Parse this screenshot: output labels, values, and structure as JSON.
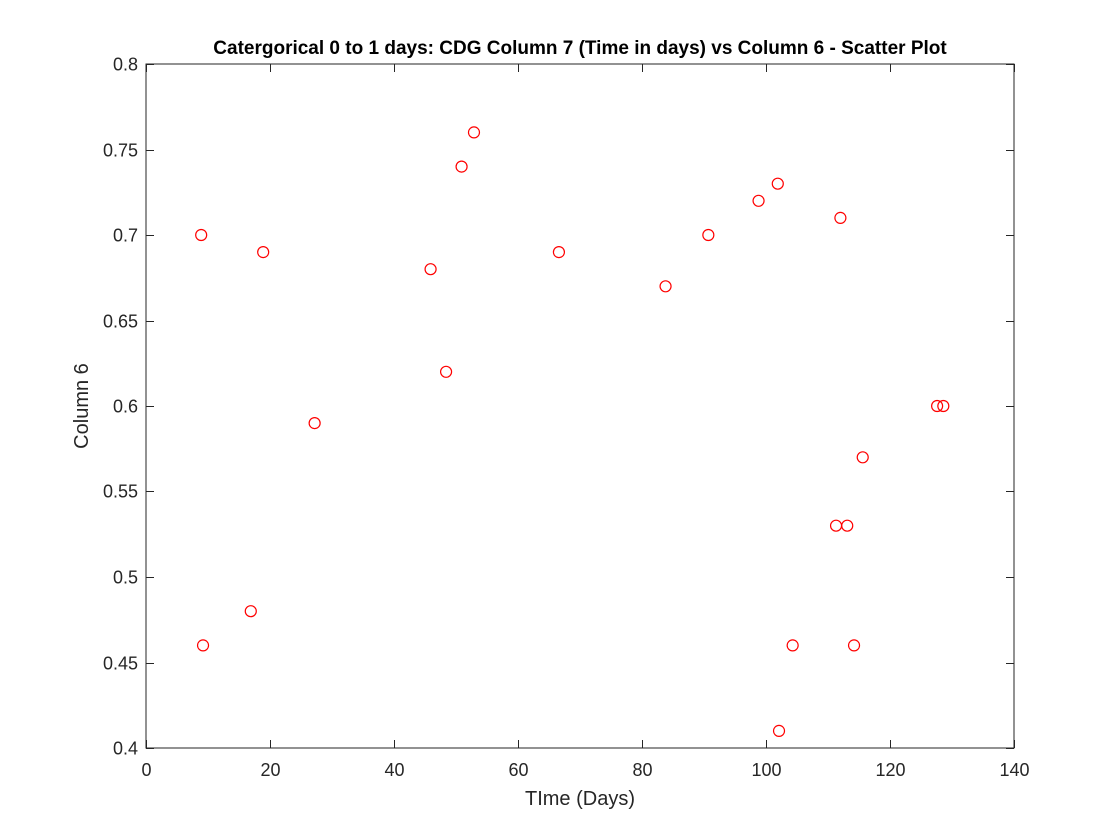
{
  "chart_data": {
    "type": "scatter",
    "title": "Catergorical 0 to 1 days: CDG Column 7 (Time in days) vs Column 6 - Scatter Plot",
    "xlabel": "TIme (Days)",
    "ylabel": "Column 6",
    "xlim": [
      0,
      140
    ],
    "ylim": [
      0.4,
      0.8
    ],
    "xticks": [
      0,
      20,
      40,
      60,
      80,
      100,
      120,
      140
    ],
    "xtick_labels": [
      "0",
      "20",
      "40",
      "60",
      "80",
      "100",
      "120",
      "140"
    ],
    "yticks": [
      0.4,
      0.45,
      0.5,
      0.55,
      0.6,
      0.65,
      0.7,
      0.75,
      0.8
    ],
    "ytick_labels": [
      "0.4",
      "0.45",
      "0.5",
      "0.55",
      "0.6",
      "0.65",
      "0.7",
      "0.75",
      "0.8"
    ],
    "grid": false,
    "marker": "circle-open",
    "marker_color": "#ff0000",
    "axis_color": "#262626",
    "points": [
      {
        "x": 8.9,
        "y": 0.7
      },
      {
        "x": 9.2,
        "y": 0.46
      },
      {
        "x": 16.9,
        "y": 0.48
      },
      {
        "x": 18.9,
        "y": 0.69
      },
      {
        "x": 27.2,
        "y": 0.59
      },
      {
        "x": 45.9,
        "y": 0.68
      },
      {
        "x": 48.4,
        "y": 0.62
      },
      {
        "x": 50.9,
        "y": 0.74
      },
      {
        "x": 52.9,
        "y": 0.76
      },
      {
        "x": 66.6,
        "y": 0.69
      },
      {
        "x": 83.8,
        "y": 0.67
      },
      {
        "x": 90.7,
        "y": 0.7
      },
      {
        "x": 98.8,
        "y": 0.72
      },
      {
        "x": 101.9,
        "y": 0.73
      },
      {
        "x": 102.1,
        "y": 0.41
      },
      {
        "x": 104.3,
        "y": 0.46
      },
      {
        "x": 111.3,
        "y": 0.53
      },
      {
        "x": 112.0,
        "y": 0.71
      },
      {
        "x": 113.1,
        "y": 0.53
      },
      {
        "x": 114.2,
        "y": 0.46
      },
      {
        "x": 115.6,
        "y": 0.57
      },
      {
        "x": 127.6,
        "y": 0.6
      },
      {
        "x": 128.6,
        "y": 0.6
      }
    ]
  }
}
